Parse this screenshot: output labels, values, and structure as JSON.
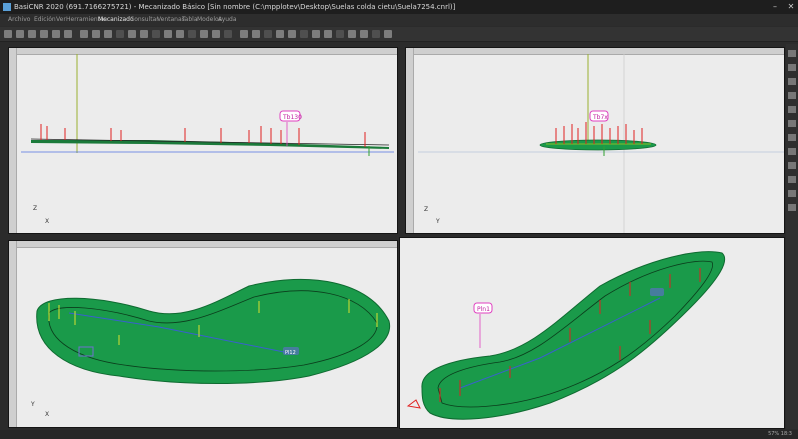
{
  "window": {
    "title": "BasiCNR 2020 (691.7166275721) - Mecanizado Básico [Sin nombre (C:\\mpplotev\\Desktop\\Suelas colda cietu\\Suela7254.cnrl)]",
    "minimize": "–",
    "close": "✕"
  },
  "menu": {
    "items": [
      "Archivo",
      "Edición",
      "Ver",
      "Herramientas",
      "Mecanizado",
      "Consultar",
      "Ventanas",
      "Tabla",
      "Modelos",
      "Ayuda"
    ],
    "active": "Mecanizado"
  },
  "toolbar": {
    "icons": [
      "new-icon",
      "open-icon",
      "save-icon",
      "save-as-icon",
      "print-icon",
      "import-icon",
      "export-icon",
      "undo-icon",
      "redo-icon",
      "cut-icon",
      "copy-icon",
      "paste-icon",
      "delete-icon",
      "select-icon",
      "move-icon",
      "rotate-icon",
      "scale-icon",
      "mirror-icon",
      "zoom-icon",
      "pan-icon",
      "fit-icon",
      "layers-icon",
      "grid-icon",
      "snap-icon",
      "measure-icon",
      "tool-icon",
      "path-icon",
      "simulate-icon",
      "post-icon",
      "settings-icon",
      "view-top-icon",
      "view-side-icon"
    ]
  },
  "viewports": {
    "top_left": {
      "axis_v": "Z",
      "axis_h": "X",
      "marker": "Tb130"
    },
    "top_right": {
      "axis_v": "Z",
      "axis_h": "Y",
      "marker": "Tb7x"
    },
    "bottom_left": {
      "axis_v": "Y",
      "axis_h": "X",
      "marker": "Pl12"
    },
    "bottom_right": {
      "marker": "Pln1"
    }
  },
  "colors": {
    "sole_fill": "#1a9a4a",
    "sole_outline": "#0e6a30",
    "path_line": "#3a5fd0",
    "marker": "#e040c0",
    "red_tick": "#e02020"
  },
  "status": {
    "left": "",
    "right": "57% 18:3"
  }
}
